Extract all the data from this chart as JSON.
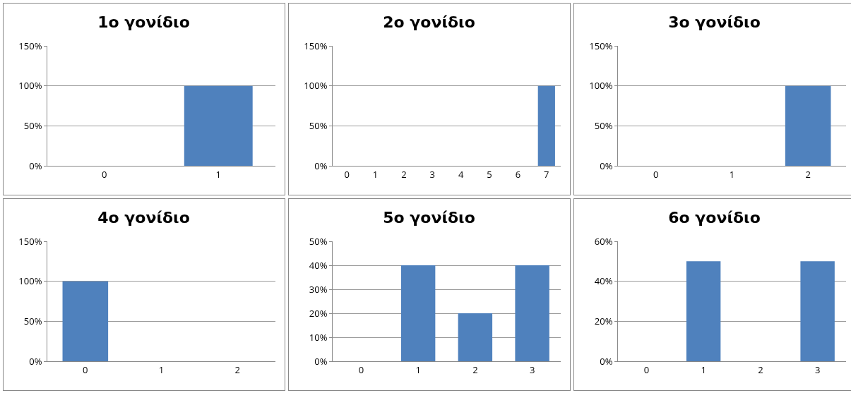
{
  "chart_data": [
    {
      "type": "bar",
      "title": "1ο γονίδιο",
      "categories": [
        "0",
        "1"
      ],
      "values": [
        0,
        100
      ],
      "color": "#4f81bd",
      "ylim": [
        0,
        150
      ],
      "yticks": [
        {
          "value": 0,
          "label": "0%"
        },
        {
          "value": 50,
          "label": "50%"
        },
        {
          "value": 100,
          "label": "100%"
        },
        {
          "value": 150,
          "label": "150%"
        }
      ],
      "grid": "y"
    },
    {
      "type": "bar",
      "title": "2ο γονίδιο",
      "categories": [
        "0",
        "1",
        "2",
        "3",
        "4",
        "5",
        "6",
        "7"
      ],
      "values": [
        0,
        0,
        0,
        0,
        0,
        0,
        0,
        100
      ],
      "color": "#4f81bd",
      "ylim": [
        0,
        150
      ],
      "yticks": [
        {
          "value": 0,
          "label": "0%"
        },
        {
          "value": 50,
          "label": "50%"
        },
        {
          "value": 100,
          "label": "100%"
        },
        {
          "value": 150,
          "label": "150%"
        }
      ],
      "grid": "y"
    },
    {
      "type": "bar",
      "title": "3ο γονίδιο",
      "categories": [
        "0",
        "1",
        "2"
      ],
      "values": [
        0,
        0,
        100
      ],
      "color": "#4f81bd",
      "ylim": [
        0,
        150
      ],
      "yticks": [
        {
          "value": 0,
          "label": "0%"
        },
        {
          "value": 50,
          "label": "50%"
        },
        {
          "value": 100,
          "label": "100%"
        },
        {
          "value": 150,
          "label": "150%"
        }
      ],
      "grid": "y"
    },
    {
      "type": "bar",
      "title": "4ο γονίδιο",
      "categories": [
        "0",
        "1",
        "2"
      ],
      "values": [
        100,
        0,
        0
      ],
      "color": "#4f81bd",
      "ylim": [
        0,
        150
      ],
      "yticks": [
        {
          "value": 0,
          "label": "0%"
        },
        {
          "value": 50,
          "label": "50%"
        },
        {
          "value": 100,
          "label": "100%"
        },
        {
          "value": 150,
          "label": "150%"
        }
      ],
      "grid": "y"
    },
    {
      "type": "bar",
      "title": "5ο γονίδιο",
      "categories": [
        "0",
        "1",
        "2",
        "3"
      ],
      "values": [
        0,
        40,
        20,
        40
      ],
      "color": "#4f81bd",
      "ylim": [
        0,
        50
      ],
      "yticks": [
        {
          "value": 0,
          "label": "0%"
        },
        {
          "value": 10,
          "label": "10%"
        },
        {
          "value": 20,
          "label": "20%"
        },
        {
          "value": 30,
          "label": "30%"
        },
        {
          "value": 40,
          "label": "40%"
        },
        {
          "value": 50,
          "label": "50%"
        }
      ],
      "grid": "y"
    },
    {
      "type": "bar",
      "title": "6ο γονίδιο",
      "categories": [
        "0",
        "1",
        "2",
        "3"
      ],
      "values": [
        0,
        50,
        0,
        50
      ],
      "color": "#4f81bd",
      "ylim": [
        0,
        60
      ],
      "yticks": [
        {
          "value": 0,
          "label": "0%"
        },
        {
          "value": 20,
          "label": "20%"
        },
        {
          "value": 40,
          "label": "40%"
        },
        {
          "value": 60,
          "label": "60%"
        }
      ],
      "grid": "y"
    }
  ]
}
